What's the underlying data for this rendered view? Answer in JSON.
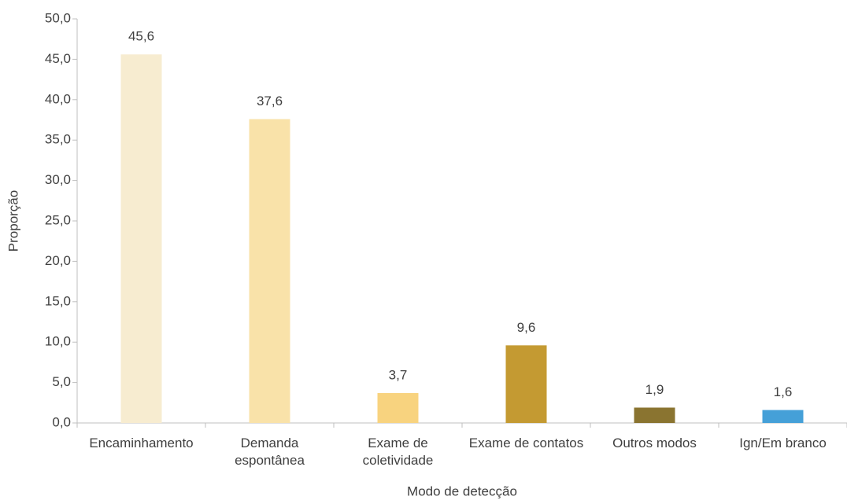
{
  "chart_data": {
    "type": "bar",
    "x_label": "Modo de detecção",
    "y_label": "Proporção",
    "categories": [
      "Encaminhamento",
      "Demanda espontânea",
      "Exame de coletividade",
      "Exame de contatos",
      "Outros modos",
      "Ign/Em branco"
    ],
    "values": [
      45.6,
      37.6,
      3.7,
      9.6,
      1.9,
      1.6
    ],
    "value_labels": [
      "45,6",
      "37,6",
      "3,7",
      "9,6",
      "1,9",
      "1,6"
    ],
    "colors": [
      "#f7ecd0",
      "#f9e2a9",
      "#f8d37f",
      "#c49a32",
      "#8a7430",
      "#45a0d8"
    ],
    "ylim": [
      0,
      50
    ],
    "yticks": [
      {
        "value": 0,
        "label": "0,0"
      },
      {
        "value": 5,
        "label": "5,0"
      },
      {
        "value": 10,
        "label": "10,0"
      },
      {
        "value": 15,
        "label": "15,0"
      },
      {
        "value": 20,
        "label": "20,0"
      },
      {
        "value": 25,
        "label": "25,0"
      },
      {
        "value": 30,
        "label": "30,0"
      },
      {
        "value": 35,
        "label": "35,0"
      },
      {
        "value": 40,
        "label": "40,0"
      },
      {
        "value": 45,
        "label": "45,0"
      },
      {
        "value": 50,
        "label": "50,0"
      }
    ],
    "grid": false
  }
}
